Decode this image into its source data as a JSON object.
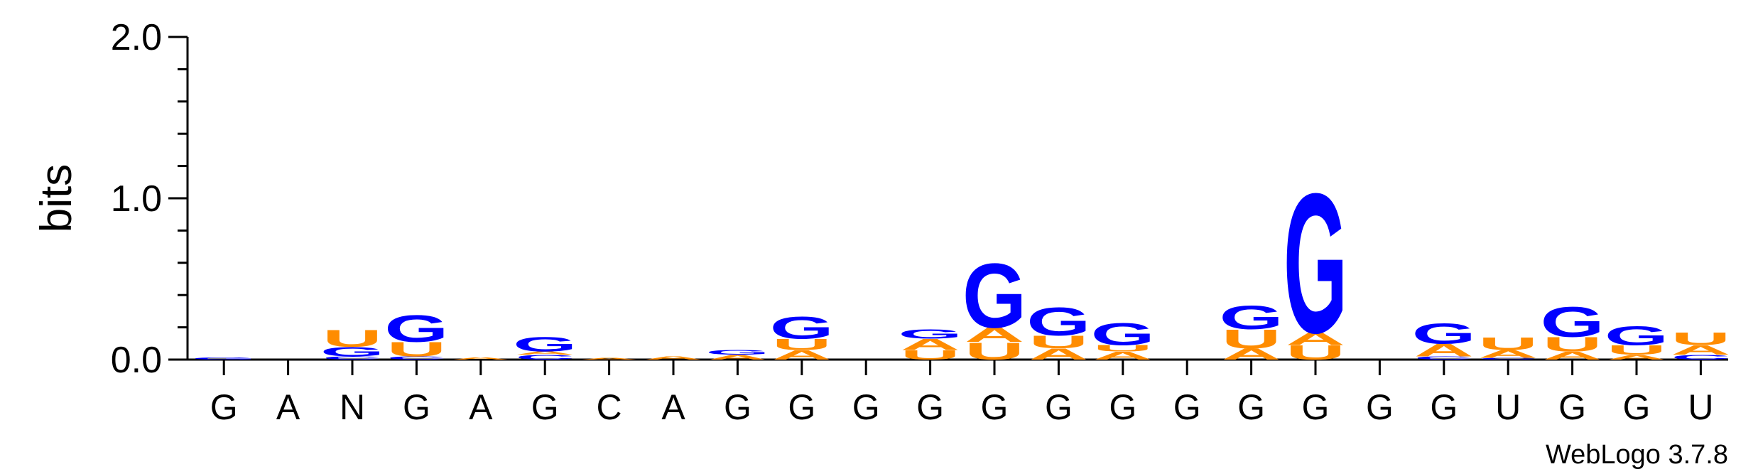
{
  "chart_data": {
    "type": "sequence-logo",
    "ylabel": "bits",
    "ylim": [
      0,
      2.0
    ],
    "yticks": [
      "0.0",
      "1.0",
      "2.0"
    ],
    "xlabels": [
      "G",
      "A",
      "N",
      "G",
      "A",
      "G",
      "C",
      "A",
      "G",
      "G",
      "G",
      "G",
      "G",
      "G",
      "G",
      "G",
      "G",
      "G",
      "G",
      "G",
      "U",
      "G",
      "G",
      "U"
    ],
    "colors": {
      "G": "#0000ff",
      "U": "#ff8c00",
      "A": "#ff8c00",
      "C": "#0000ff"
    },
    "columns": [
      [
        [
          "G",
          0.015
        ]
      ],
      [],
      [
        [
          "C",
          0.02
        ],
        [
          "G",
          0.06
        ],
        [
          "U",
          0.11
        ]
      ],
      [
        [
          "C",
          0.02
        ],
        [
          "U",
          0.09
        ],
        [
          "G",
          0.17
        ]
      ],
      [
        [
          "A",
          0.015
        ]
      ],
      [
        [
          "C",
          0.03
        ],
        [
          "A",
          0.02
        ],
        [
          "G",
          0.09
        ]
      ],
      [
        [
          "A",
          0.01
        ]
      ],
      [
        [
          "A",
          0.02
        ]
      ],
      [
        [
          "A",
          0.03
        ],
        [
          "G",
          0.03
        ]
      ],
      [
        [
          "A",
          0.06
        ],
        [
          "U",
          0.07
        ],
        [
          "G",
          0.14
        ]
      ],
      [],
      [
        [
          "U",
          0.06
        ],
        [
          "A",
          0.07
        ],
        [
          "G",
          0.06
        ]
      ],
      [
        [
          "U",
          0.11
        ],
        [
          "A",
          0.09
        ],
        [
          "G",
          0.41
        ]
      ],
      [
        [
          "A",
          0.07
        ],
        [
          "U",
          0.08
        ],
        [
          "G",
          0.18
        ]
      ],
      [
        [
          "A",
          0.05
        ],
        [
          "U",
          0.04
        ],
        [
          "G",
          0.14
        ]
      ],
      [],
      [
        [
          "A",
          0.07
        ],
        [
          "U",
          0.12
        ],
        [
          "G",
          0.15
        ]
      ],
      [
        [
          "U",
          0.09
        ],
        [
          "A",
          0.08
        ],
        [
          "G",
          0.89
        ]
      ],
      [],
      [
        [
          "C",
          0.02
        ],
        [
          "A",
          0.08
        ],
        [
          "G",
          0.13
        ]
      ],
      [
        [
          "C",
          0.01
        ],
        [
          "A",
          0.05
        ],
        [
          "U",
          0.08
        ]
      ],
      [
        [
          "A",
          0.05
        ],
        [
          "U",
          0.09
        ],
        [
          "G",
          0.19
        ]
      ],
      [
        [
          "A",
          0.03
        ],
        [
          "U",
          0.06
        ],
        [
          "G",
          0.12
        ]
      ],
      [
        [
          "C",
          0.03
        ],
        [
          "A",
          0.06
        ],
        [
          "U",
          0.08
        ]
      ]
    ]
  },
  "credit": "WebLogo 3.7.8"
}
